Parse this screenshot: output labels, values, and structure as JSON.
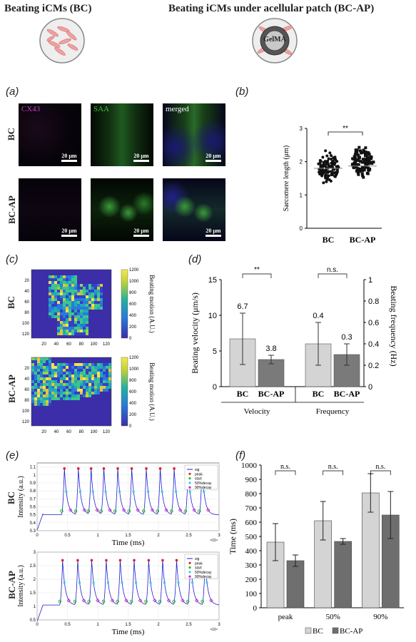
{
  "header": {
    "left_title": "Beating iCMs (BC)",
    "right_title": "Beating iCMs under acellular patch (BC-AP)",
    "patch_label": "GelMA"
  },
  "panel_labels": {
    "a": "(a)",
    "b": "(b)",
    "c": "(c)",
    "d": "(d)",
    "e": "(e)",
    "f": "(f)"
  },
  "panel_a": {
    "rows": [
      "BC",
      "BC-AP"
    ],
    "channels": [
      "CX43",
      "SAA",
      "merged"
    ],
    "scale_bar": "20 μm",
    "colors": {
      "cx43": "#c040c0",
      "saa": "#40c040",
      "merged_label": "#ffffff"
    }
  },
  "chart_data": [
    {
      "id": "b",
      "type": "scatter",
      "categories": [
        "BC",
        "BC-AP"
      ],
      "ylabel": "Sarcomere length (μm)",
      "ylim": [
        0,
        3
      ],
      "yticks": [
        0,
        1,
        2,
        3
      ],
      "means": [
        1.8,
        1.87
      ],
      "spread": [
        [
          1.25,
          2.45
        ],
        [
          1.4,
          2.6
        ]
      ],
      "significance": "**"
    },
    {
      "id": "c",
      "type": "heatmap",
      "rows": [
        "BC",
        "BC-AP"
      ],
      "xticks": [
        20,
        40,
        60,
        80,
        100,
        120
      ],
      "yticks": [
        20,
        40,
        60,
        80,
        100,
        120
      ],
      "colorbar_ticks": [
        0,
        200,
        400,
        600,
        800,
        1000,
        1200
      ],
      "colorbar_label": "Beating motion (A.U.)"
    },
    {
      "id": "d",
      "type": "bar",
      "groups": [
        "Velocity",
        "Frequency"
      ],
      "categories": [
        "BC",
        "BC-AP"
      ],
      "velocity": {
        "values": [
          6.7,
          3.8
        ],
        "errors": [
          3.6,
          0.6
        ],
        "labels": [
          "6.7",
          "3.8"
        ]
      },
      "frequency": {
        "values": [
          0.4,
          0.3
        ],
        "errors": [
          0.2,
          0.1
        ],
        "labels": [
          "0.4",
          "0.3"
        ]
      },
      "ylabel_left": "Beating velocity (μm/s)",
      "ylabel_right": "Beating frequency (Hz)",
      "ylim_left": [
        0,
        15
      ],
      "yticks_left": [
        0,
        5,
        10,
        15
      ],
      "ylim_right": [
        0,
        1
      ],
      "yticks_right": [
        0,
        0.2,
        0.4,
        0.6,
        0.8,
        1
      ],
      "significance": [
        "**",
        "n.s."
      ],
      "bar_colors": [
        "#d4d4d4",
        "#7a7a7a"
      ]
    },
    {
      "id": "e",
      "type": "line",
      "rows": [
        "BC",
        "BC-AP"
      ],
      "xlabel": "Time (ms)",
      "ylabel": "Intensity (a.u.)",
      "xticks": [
        "0",
        "0.5",
        "1",
        "1.5",
        "2",
        "2.5",
        "3"
      ],
      "x_multiplier": "×10⁴",
      "bc_yticks": [
        "0.3",
        "0.4",
        "0.5",
        "0.6",
        "0.7",
        "0.8",
        "0.9",
        "1",
        "1.1"
      ],
      "bcap_yticks": [
        "0.5",
        "1",
        "1.5",
        "2",
        "2.5",
        "3"
      ],
      "legend": [
        "sig",
        "peak",
        "start",
        "50%decay",
        "90%decay"
      ],
      "bc_peak_times": [
        0.45,
        0.68,
        0.89,
        1.1,
        1.33,
        1.56,
        1.8,
        2.03,
        2.26,
        2.49,
        2.72
      ],
      "bcap_peak_times": [
        0.42,
        0.67,
        0.9,
        1.14,
        1.37,
        1.6,
        1.84,
        2.07,
        2.3,
        2.53,
        2.77
      ],
      "colors": {
        "sig": "#1f1fd0",
        "peak": "#e02020",
        "start": "#20c020",
        "decay50": "#30d0e0",
        "decay90": "#d020d0"
      }
    },
    {
      "id": "f",
      "type": "bar",
      "categories": [
        "peak",
        "50%",
        "90%"
      ],
      "series": [
        {
          "name": "BC",
          "values": [
            460,
            610,
            805
          ],
          "errors": [
            130,
            135,
            135
          ]
        },
        {
          "name": "BC-AP",
          "values": [
            330,
            465,
            650
          ],
          "errors": [
            40,
            20,
            165
          ]
        }
      ],
      "ylabel": "Time (ms)",
      "ylim": [
        0,
        1000
      ],
      "yticks": [
        0,
        100,
        200,
        300,
        400,
        500,
        600,
        700,
        800,
        900,
        1000
      ],
      "significance": [
        "n.s.",
        "n.s.",
        "n.s."
      ],
      "bar_colors": [
        "#d4d4d4",
        "#6e6e6e"
      ]
    }
  ]
}
